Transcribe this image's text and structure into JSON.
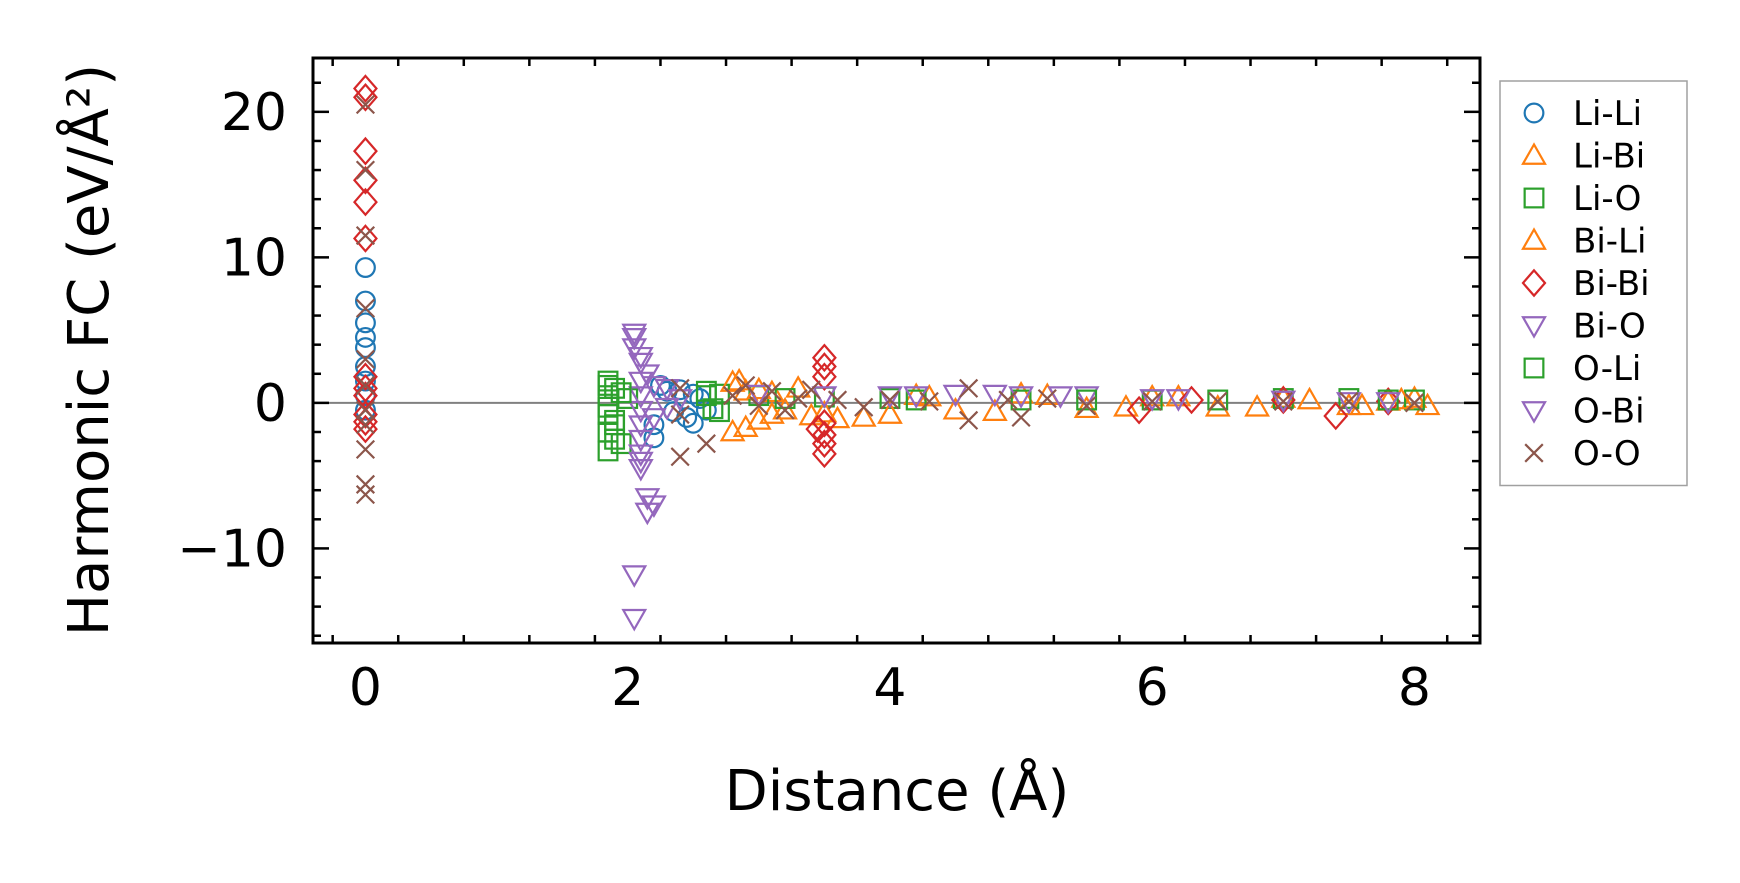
{
  "chart_data": {
    "type": "scatter",
    "title": "",
    "xlabel": "Distance (Å)",
    "ylabel": "Harmonic FC (eV/Å²)",
    "xlim": [
      -0.4,
      8.5
    ],
    "ylim": [
      -16.5,
      23.7
    ],
    "xticks": [
      0,
      2,
      4,
      6,
      8
    ],
    "xtick_labels": [
      "0",
      "2",
      "4",
      "6",
      "8"
    ],
    "yticks": [
      -10,
      0,
      10,
      20
    ],
    "ytick_labels": [
      "−10",
      "0",
      "10",
      "20"
    ],
    "reference_line_y": 0,
    "legend_position": "outside-right",
    "series": [
      {
        "name": "Li-Li",
        "marker": "circle",
        "color": "#1f77b4",
        "points": [
          [
            0,
            9.3
          ],
          [
            0,
            7.0
          ],
          [
            0,
            5.5
          ],
          [
            0,
            4.5
          ],
          [
            0,
            3.8
          ],
          [
            0,
            2.5
          ],
          [
            0,
            1.5
          ],
          [
            0,
            0.5
          ],
          [
            0,
            -0.5
          ],
          [
            2.2,
            -2.4
          ],
          [
            2.2,
            -1.5
          ],
          [
            2.25,
            1.2
          ],
          [
            2.3,
            0.8
          ],
          [
            2.35,
            -0.6
          ],
          [
            2.4,
            0.9
          ],
          [
            2.45,
            -1.0
          ],
          [
            2.5,
            -1.4
          ],
          [
            2.5,
            0.6
          ],
          [
            2.55,
            0.3
          ],
          [
            2.6,
            -0.5
          ]
        ]
      },
      {
        "name": "Li-Bi",
        "marker": "triangle-up",
        "color": "#ff7f0e",
        "points": [
          [
            2.8,
            -2.0
          ],
          [
            2.85,
            1.5
          ],
          [
            2.9,
            0.8
          ],
          [
            3.0,
            -1.2
          ],
          [
            3.1,
            0.7
          ],
          [
            3.2,
            -0.5
          ],
          [
            3.4,
            -0.9
          ],
          [
            3.6,
            -1.1
          ],
          [
            3.8,
            -1.0
          ],
          [
            4.2,
            0.5
          ],
          [
            4.5,
            -0.5
          ],
          [
            5.0,
            0.6
          ],
          [
            5.5,
            -0.4
          ],
          [
            6.0,
            0.4
          ],
          [
            6.5,
            -0.3
          ],
          [
            7.0,
            0.3
          ],
          [
            7.5,
            -0.2
          ],
          [
            7.8,
            0.1
          ],
          [
            8.0,
            0.3
          ],
          [
            8.1,
            -0.2
          ]
        ]
      },
      {
        "name": "Li-O",
        "marker": "square",
        "color": "#2ca02c",
        "points": [
          [
            1.85,
            1.5
          ],
          [
            1.85,
            0.5
          ],
          [
            1.85,
            -0.8
          ],
          [
            1.85,
            -2.0
          ],
          [
            1.85,
            -3.3
          ],
          [
            1.9,
            1.0
          ],
          [
            1.9,
            -1.5
          ],
          [
            1.95,
            -2.8
          ],
          [
            2.0,
            0.3
          ],
          [
            2.6,
            0.8
          ],
          [
            2.65,
            -0.4
          ],
          [
            2.7,
            0.6
          ],
          [
            3.0,
            0.5
          ],
          [
            3.5,
            0.4
          ],
          [
            4.0,
            0.3
          ],
          [
            5.0,
            0.2
          ],
          [
            6.0,
            0.2
          ],
          [
            7.0,
            0.3
          ],
          [
            7.5,
            0.3
          ],
          [
            8.0,
            0.2
          ]
        ]
      },
      {
        "name": "Bi-Li",
        "marker": "triangle-up",
        "color": "#ff7f0e",
        "points": [
          [
            2.8,
            1.4
          ],
          [
            2.9,
            -1.7
          ],
          [
            3.0,
            0.9
          ],
          [
            3.1,
            -0.8
          ],
          [
            3.3,
            1.0
          ],
          [
            3.5,
            -0.7
          ],
          [
            4.0,
            -0.8
          ],
          [
            4.3,
            0.4
          ],
          [
            4.8,
            -0.6
          ],
          [
            5.2,
            0.5
          ],
          [
            5.8,
            -0.3
          ],
          [
            6.2,
            0.4
          ],
          [
            6.8,
            -0.3
          ],
          [
            7.2,
            0.2
          ],
          [
            7.6,
            -0.2
          ],
          [
            7.9,
            0.2
          ]
        ]
      },
      {
        "name": "Bi-Bi",
        "marker": "diamond",
        "color": "#d62728",
        "points": [
          [
            0,
            21.6
          ],
          [
            0,
            21.0
          ],
          [
            0,
            17.3
          ],
          [
            0,
            15.3
          ],
          [
            0,
            13.8
          ],
          [
            0,
            11.3
          ],
          [
            0,
            1.8
          ],
          [
            0,
            1.0
          ],
          [
            0,
            0.5
          ],
          [
            0,
            -0.8
          ],
          [
            0,
            -1.3
          ],
          [
            0,
            -1.8
          ],
          [
            3.5,
            3.1
          ],
          [
            3.5,
            2.5
          ],
          [
            3.5,
            1.8
          ],
          [
            3.5,
            -1.4
          ],
          [
            3.5,
            -2.2
          ],
          [
            3.5,
            -2.8
          ],
          [
            3.5,
            -3.5
          ],
          [
            3.45,
            -1.8
          ],
          [
            5.9,
            -0.5
          ],
          [
            6.3,
            0.2
          ],
          [
            7.0,
            0.2
          ],
          [
            7.4,
            -0.9
          ],
          [
            7.8,
            0.1
          ]
        ]
      },
      {
        "name": "Bi-O",
        "marker": "triangle-down",
        "color": "#9467bd",
        "points": [
          [
            2.05,
            4.5
          ],
          [
            2.05,
            3.8
          ],
          [
            2.1,
            2.8
          ],
          [
            2.1,
            1.5
          ],
          [
            2.1,
            0.5
          ],
          [
            2.1,
            -0.5
          ],
          [
            2.1,
            -1.5
          ],
          [
            2.1,
            -2.5
          ],
          [
            2.1,
            -3.5
          ],
          [
            2.1,
            -4.5
          ],
          [
            2.15,
            -7.5
          ],
          [
            2.2,
            -7.0
          ],
          [
            2.05,
            -11.8
          ],
          [
            2.05,
            -14.8
          ],
          [
            2.15,
            2.0
          ],
          [
            2.2,
            -1.0
          ],
          [
            2.3,
            1.0
          ],
          [
            2.4,
            0.3
          ],
          [
            3.0,
            0.6
          ],
          [
            4.0,
            0.5
          ],
          [
            4.5,
            0.6
          ],
          [
            5.0,
            0.5
          ],
          [
            5.5,
            0.5
          ],
          [
            6.0,
            0.3
          ],
          [
            7.0,
            0.2
          ],
          [
            7.5,
            0.1
          ]
        ]
      },
      {
        "name": "O-Li",
        "marker": "square",
        "color": "#2ca02c",
        "points": [
          [
            1.85,
            1.2
          ],
          [
            1.85,
            -0.3
          ],
          [
            1.9,
            -1.2
          ],
          [
            1.9,
            -2.5
          ],
          [
            1.95,
            0.7
          ],
          [
            2.6,
            0.5
          ],
          [
            2.7,
            -0.6
          ],
          [
            3.2,
            0.3
          ],
          [
            4.2,
            0.2
          ],
          [
            5.5,
            0.2
          ],
          [
            6.5,
            0.2
          ],
          [
            7.8,
            0.2
          ]
        ]
      },
      {
        "name": "O-Bi",
        "marker": "triangle-down",
        "color": "#9467bd",
        "points": [
          [
            2.05,
            4.8
          ],
          [
            2.1,
            3.2
          ],
          [
            2.1,
            -4.0
          ],
          [
            2.15,
            -6.5
          ],
          [
            2.2,
            1.2
          ],
          [
            2.3,
            -0.3
          ],
          [
            3.5,
            0.5
          ],
          [
            4.2,
            0.5
          ],
          [
            4.8,
            0.6
          ],
          [
            5.3,
            0.5
          ],
          [
            6.2,
            0.3
          ],
          [
            7.8,
            0.1
          ]
        ]
      },
      {
        "name": "O-O",
        "marker": "x",
        "color": "#8c564b",
        "points": [
          [
            0,
            20.5
          ],
          [
            0,
            16.0
          ],
          [
            0,
            11.5
          ],
          [
            0,
            6.5
          ],
          [
            0,
            3.0
          ],
          [
            0,
            1.2
          ],
          [
            0,
            -0.5
          ],
          [
            0,
            -1.5
          ],
          [
            0,
            -3.2
          ],
          [
            0,
            -5.6
          ],
          [
            0,
            -6.3
          ],
          [
            2.4,
            1.0
          ],
          [
            2.4,
            -0.8
          ],
          [
            2.4,
            -3.7
          ],
          [
            2.6,
            -2.8
          ],
          [
            2.8,
            0.5
          ],
          [
            2.9,
            1.2
          ],
          [
            3.0,
            -0.2
          ],
          [
            3.1,
            0.8
          ],
          [
            3.2,
            -0.5
          ],
          [
            3.3,
            0.3
          ],
          [
            3.4,
            0.9
          ],
          [
            3.6,
            0.2
          ],
          [
            3.8,
            -0.3
          ],
          [
            4.0,
            0.2
          ],
          [
            4.3,
            0.1
          ],
          [
            4.6,
            1.0
          ],
          [
            4.6,
            -1.2
          ],
          [
            4.9,
            0.2
          ],
          [
            5.0,
            -1.0
          ],
          [
            5.2,
            0.3
          ],
          [
            5.5,
            -0.2
          ],
          [
            6.0,
            0.1
          ],
          [
            6.5,
            0.1
          ],
          [
            7.0,
            0.1
          ],
          [
            7.5,
            0.1
          ],
          [
            8.0,
            0.0
          ]
        ]
      }
    ]
  }
}
